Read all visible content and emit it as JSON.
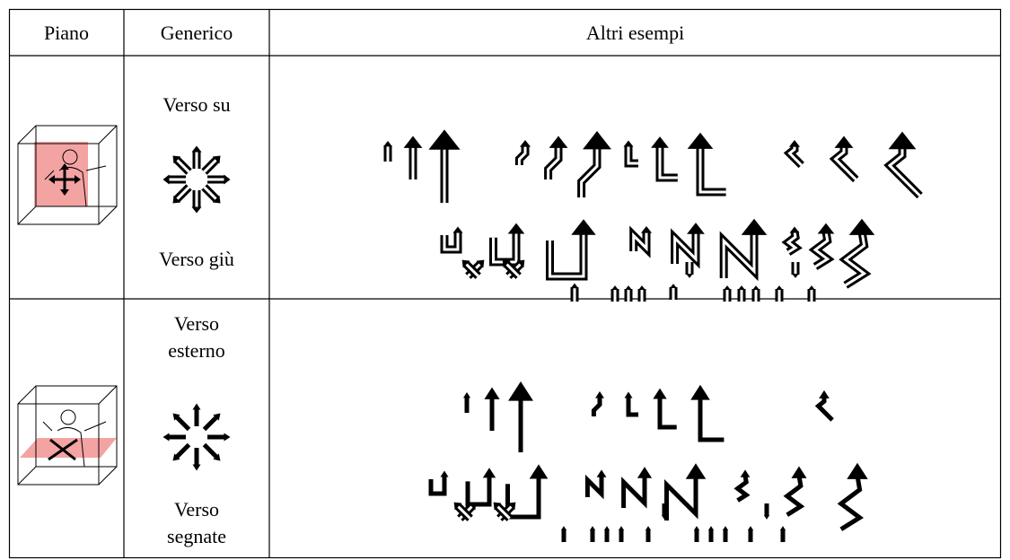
{
  "header": {
    "columns": [
      "Piano",
      "Generico",
      "Altri esempi"
    ]
  },
  "rows": [
    {
      "generic_top": "Verso su",
      "generic_bottom": "Verso giù"
    },
    {
      "generic_top": "Verso esterno",
      "generic_bottom": "Verso segnate"
    }
  ]
}
